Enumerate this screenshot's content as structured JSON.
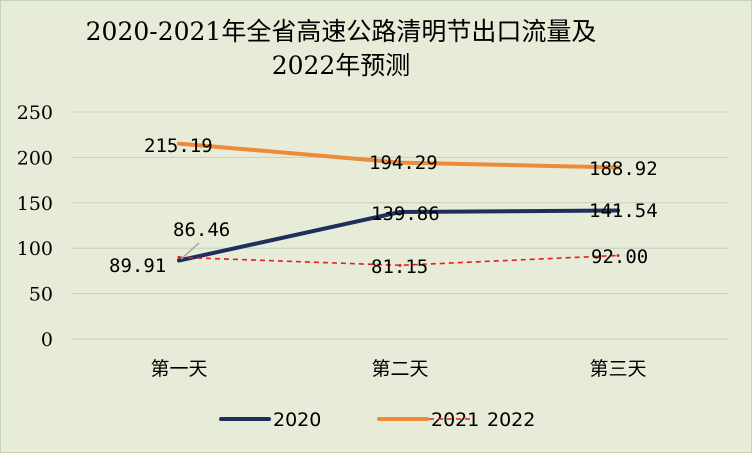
{
  "chart_data": {
    "type": "line",
    "title": "2020-2021年全省高速公路清明节出口流量及2022年预测",
    "title_lines": [
      "2020-2021年全省高速公路清明节出口流量及",
      "2022年预测"
    ],
    "categories": [
      "第一天",
      "第二天",
      "第三天"
    ],
    "ylim": [
      0,
      250
    ],
    "yticks": [
      "0",
      "50",
      "100",
      "150",
      "200",
      "250"
    ],
    "grid": true,
    "legend_position": "bottom",
    "series": [
      {
        "name": "2020",
        "color": "#1f2f5c",
        "style": "solid",
        "values": [
          86.46,
          139.86,
          141.54
        ],
        "labels": [
          "86.46",
          "139.86",
          "141.54"
        ]
      },
      {
        "name": "2021",
        "color": "#ed8a3c",
        "style": "solid",
        "values": [
          215.19,
          194.29,
          188.92
        ],
        "labels": [
          "215.19",
          "194.29",
          "188.92"
        ]
      },
      {
        "name": "2022",
        "color": "#e0201b",
        "style": "dashed",
        "values": [
          89.91,
          81.15,
          92.0
        ],
        "labels": [
          "89.91",
          "81.15",
          "92.00"
        ]
      }
    ]
  }
}
